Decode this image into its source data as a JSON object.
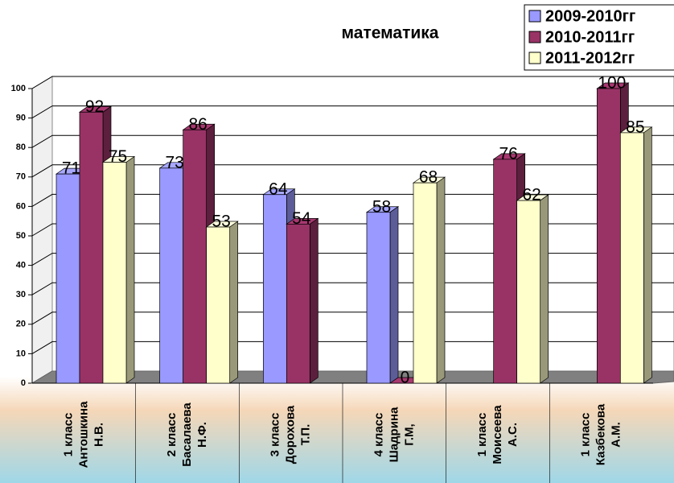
{
  "chart_data": {
    "type": "bar3d",
    "title": "математика",
    "categories": [
      [
        "1 класс",
        "Антошкина",
        "Н.В."
      ],
      [
        "2 класс",
        "Басалаева",
        "Н.Ф."
      ],
      [
        "3 класс",
        "Дорохова",
        "Т.П."
      ],
      [
        "4 класс",
        "Шадрина",
        "Г.М,"
      ],
      [
        "1 класс",
        "Моисеева",
        "А.С."
      ],
      [
        "1 класс",
        "Казбекова",
        "А.М."
      ]
    ],
    "series": [
      {
        "name": "2009-2010гг",
        "color": "#9999ff",
        "values": [
          71,
          73,
          64,
          58,
          null,
          null
        ]
      },
      {
        "name": "2010-2011гг",
        "color": "#993366",
        "values": [
          92,
          86,
          54,
          0,
          76,
          100
        ]
      },
      {
        "name": "2011-2012гг",
        "color": "#ffffcc",
        "values": [
          75,
          53,
          null,
          68,
          62,
          85
        ]
      }
    ],
    "ylim": [
      0,
      100
    ],
    "yticks": [
      0,
      10,
      20,
      30,
      40,
      50,
      60,
      70,
      80,
      90,
      100
    ],
    "grid": true,
    "legend": "top-right"
  }
}
